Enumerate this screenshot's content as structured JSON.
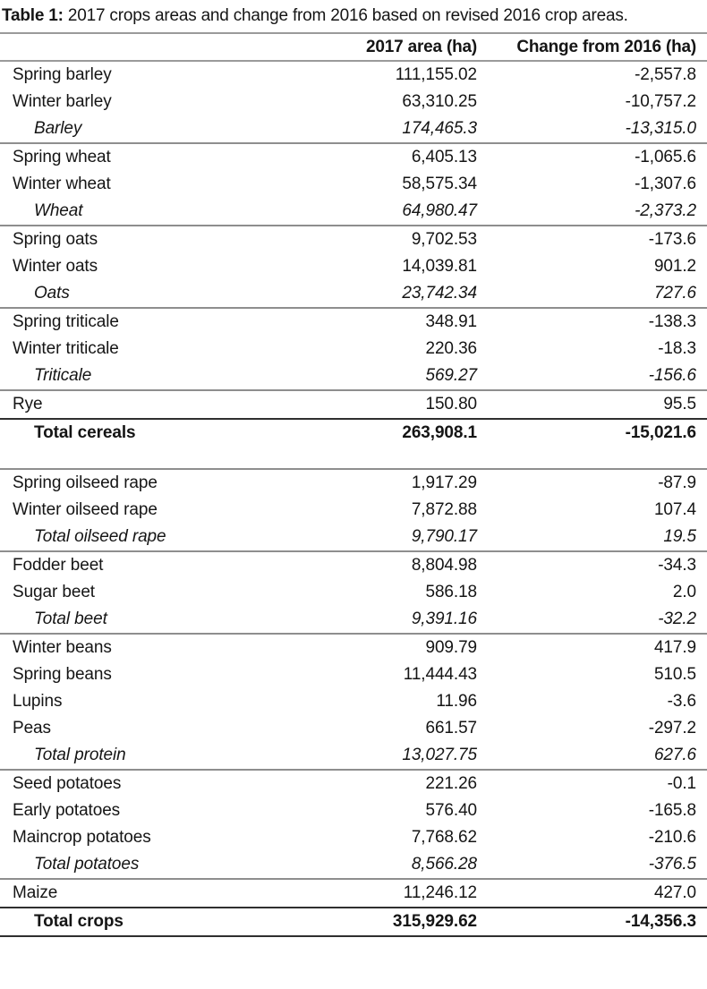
{
  "title": {
    "label": "Table 1:",
    "text": " 2017 crops areas and change from 2016 based on revised 2016 crop areas."
  },
  "header": {
    "crop": "",
    "area": "2017 area (ha)",
    "change": "Change from 2016 (ha)"
  },
  "groups": [
    {
      "rows": [
        {
          "name": "Spring barley",
          "area": "111,155.02",
          "change": "-2,557.8"
        },
        {
          "name": "Winter barley",
          "area": "63,310.25",
          "change": "-10,757.2"
        },
        {
          "name": "Barley",
          "area": "174,465.3",
          "change": "-13,315.0"
        }
      ]
    },
    {
      "rows": [
        {
          "name": "Spring wheat",
          "area": "6,405.13",
          "change": "-1,065.6"
        },
        {
          "name": "Winter wheat",
          "area": "58,575.34",
          "change": "-1,307.6"
        },
        {
          "name": "Wheat",
          "area": "64,980.47",
          "change": "-2,373.2"
        }
      ]
    },
    {
      "rows": [
        {
          "name": "Spring oats",
          "area": "9,702.53",
          "change": "-173.6"
        },
        {
          "name": "Winter oats",
          "area": "14,039.81",
          "change": "901.2"
        },
        {
          "name": "Oats",
          "area": "23,742.34",
          "change": "727.6"
        }
      ]
    },
    {
      "rows": [
        {
          "name": "Spring triticale",
          "area": "348.91",
          "change": "-138.3"
        },
        {
          "name": "Winter triticale",
          "area": "220.36",
          "change": "-18.3"
        },
        {
          "name": "Triticale",
          "area": "569.27",
          "change": "-156.6"
        }
      ]
    },
    {
      "rows": [
        {
          "name": "Rye",
          "area": "150.80",
          "change": "95.5"
        }
      ]
    },
    {
      "rows": [
        {
          "name": "Total cereals",
          "area": "263,908.1",
          "change": "-15,021.6"
        }
      ]
    },
    {
      "rows": [
        {
          "name": "Spring oilseed rape",
          "area": "1,917.29",
          "change": "-87.9"
        },
        {
          "name": "Winter oilseed rape",
          "area": "7,872.88",
          "change": "107.4"
        },
        {
          "name": "Total oilseed rape",
          "area": "9,790.17",
          "change": "19.5"
        }
      ]
    },
    {
      "rows": [
        {
          "name": "Fodder beet",
          "area": "8,804.98",
          "change": "-34.3"
        },
        {
          "name": "Sugar beet",
          "area": "586.18",
          "change": "2.0"
        },
        {
          "name": "Total beet",
          "area": "9,391.16",
          "change": "-32.2"
        }
      ]
    },
    {
      "rows": [
        {
          "name": "Winter beans",
          "area": "909.79",
          "change": "417.9"
        },
        {
          "name": "Spring beans",
          "area": "11,444.43",
          "change": "510.5"
        },
        {
          "name": "Lupins",
          "area": "11.96",
          "change": "-3.6"
        },
        {
          "name": "Peas",
          "area": "661.57",
          "change": "-297.2"
        },
        {
          "name": "Total protein",
          "area": "13,027.75",
          "change": "627.6"
        }
      ]
    },
    {
      "rows": [
        {
          "name": "Seed potatoes",
          "area": "221.26",
          "change": "-0.1"
        },
        {
          "name": "Early potatoes",
          "area": "576.40",
          "change": "-165.8"
        },
        {
          "name": "Maincrop potatoes",
          "area": "7,768.62",
          "change": "-210.6"
        },
        {
          "name": "Total potatoes",
          "area": "8,566.28",
          "change": "-376.5"
        }
      ]
    },
    {
      "rows": [
        {
          "name": "Maize",
          "area": "11,246.12",
          "change": "427.0"
        }
      ]
    },
    {
      "rows": [
        {
          "name": "Total crops",
          "area": "315,929.62",
          "change": "-14,356.3"
        }
      ]
    }
  ]
}
